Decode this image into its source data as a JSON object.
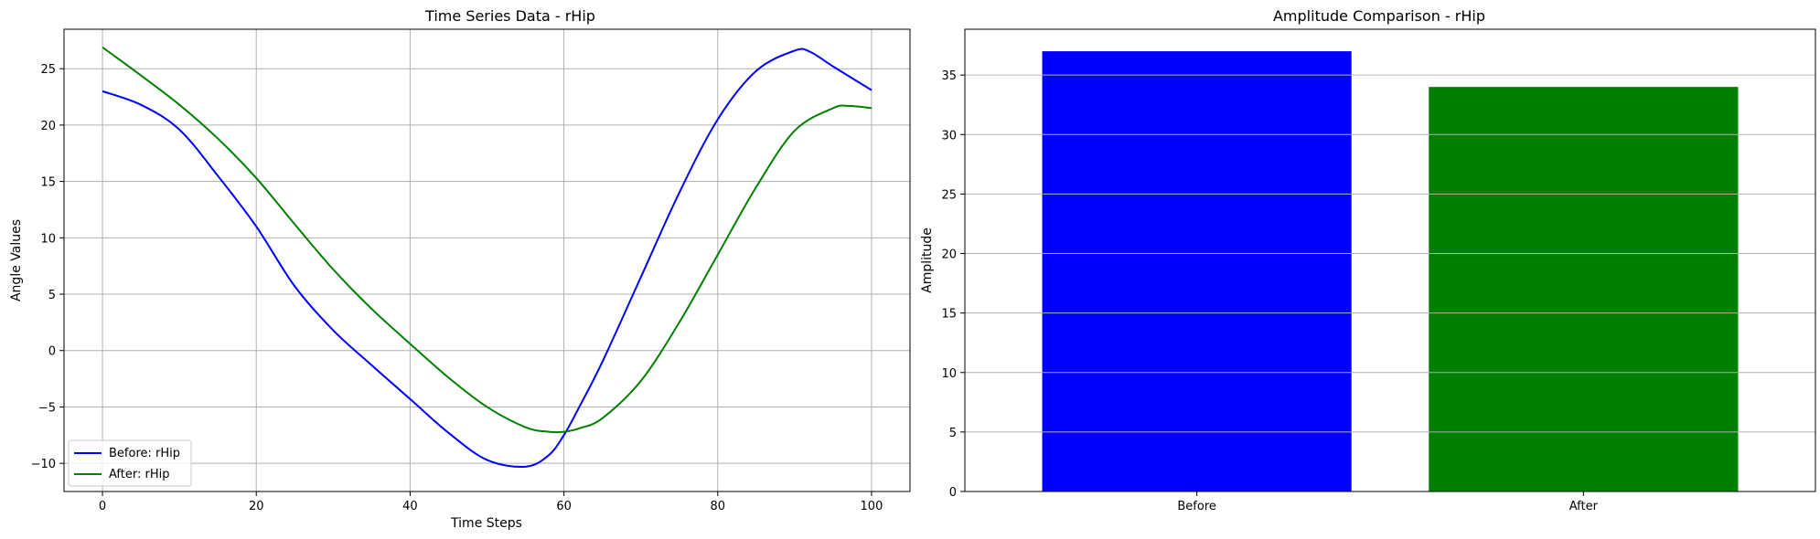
{
  "chart_data": [
    {
      "type": "line",
      "title": "Time Series Data - rHip",
      "xlabel": "Time Steps",
      "ylabel": "Angle Values",
      "xlim": [
        -5,
        105
      ],
      "ylim": [
        -12.5,
        28.5
      ],
      "xticks": [
        0,
        20,
        40,
        60,
        80,
        100
      ],
      "yticks": [
        -10,
        -5,
        0,
        5,
        10,
        15,
        20,
        25
      ],
      "grid": true,
      "legend_position": "lower-left",
      "series": [
        {
          "name": "Before: rHip",
          "color": "#0000ff",
          "x": [
            0,
            5,
            10,
            15,
            20,
            25,
            30,
            35,
            40,
            45,
            50,
            55,
            58,
            60,
            62,
            65,
            70,
            75,
            80,
            85,
            90,
            92,
            95,
            100
          ],
          "y": [
            23,
            21.8,
            19.6,
            15.5,
            11.0,
            5.7,
            1.8,
            -1.3,
            -4.3,
            -7.3,
            -9.7,
            -10.3,
            -9.3,
            -7.5,
            -5.0,
            -1.0,
            6.5,
            14.0,
            20.5,
            24.8,
            26.6,
            26.5,
            25.2,
            23.1
          ]
        },
        {
          "name": "After: rHip",
          "color": "#008000",
          "x": [
            0,
            5,
            10,
            15,
            20,
            25,
            30,
            35,
            40,
            45,
            50,
            55,
            58,
            60,
            62,
            65,
            70,
            75,
            80,
            85,
            90,
            95,
            97,
            100
          ],
          "y": [
            26.9,
            24.4,
            21.8,
            18.8,
            15.3,
            11.2,
            7.2,
            3.7,
            0.6,
            -2.4,
            -5.0,
            -6.8,
            -7.2,
            -7.2,
            -6.9,
            -6.0,
            -2.7,
            2.5,
            8.5,
            14.5,
            19.5,
            21.5,
            21.7,
            21.5
          ]
        }
      ]
    },
    {
      "type": "bar",
      "title": "Amplitude Comparison - rHip",
      "xlabel": "",
      "ylabel": "Amplitude",
      "categories": [
        "Before",
        "After"
      ],
      "values": [
        37.0,
        34.0
      ],
      "colors": [
        "#0000ff",
        "#008000"
      ],
      "ylim": [
        0,
        38.85
      ],
      "yticks": [
        0,
        5,
        10,
        15,
        20,
        25,
        30,
        35
      ],
      "grid": true,
      "grid_axis": "y"
    }
  ]
}
